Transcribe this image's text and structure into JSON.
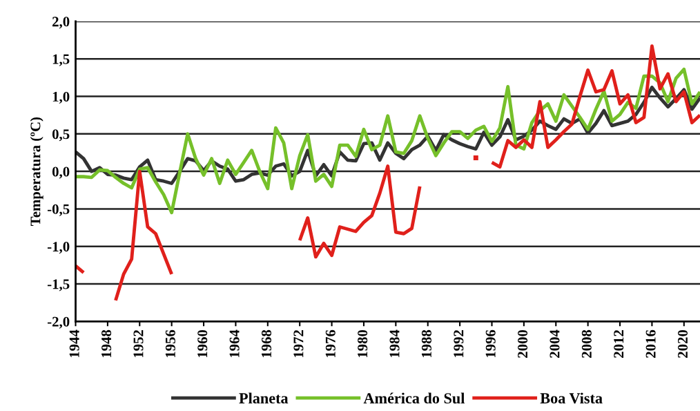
{
  "chart_data": {
    "type": "line",
    "ylabel": "Temperatura (ºC)",
    "x": [
      1944,
      1945,
      1946,
      1947,
      1948,
      1949,
      1950,
      1951,
      1952,
      1953,
      1954,
      1955,
      1956,
      1957,
      1958,
      1959,
      1960,
      1961,
      1962,
      1963,
      1964,
      1965,
      1966,
      1967,
      1968,
      1969,
      1970,
      1971,
      1972,
      1973,
      1974,
      1975,
      1976,
      1977,
      1978,
      1979,
      1980,
      1981,
      1982,
      1983,
      1984,
      1985,
      1986,
      1987,
      1988,
      1989,
      1990,
      1991,
      1992,
      1993,
      1994,
      1995,
      1996,
      1997,
      1998,
      1999,
      2000,
      2001,
      2002,
      2003,
      2004,
      2005,
      2006,
      2007,
      2008,
      2009,
      2010,
      2011,
      2012,
      2013,
      2014,
      2015,
      2016,
      2017,
      2018,
      2019,
      2020,
      2021,
      2022
    ],
    "series": [
      {
        "name": "Planeta",
        "color": "#333333",
        "values": [
          0.26,
          0.17,
          0.0,
          0.05,
          -0.04,
          -0.05,
          -0.09,
          -0.11,
          0.06,
          0.15,
          -0.11,
          -0.13,
          -0.16,
          0.0,
          0.17,
          0.14,
          0.01,
          0.14,
          0.07,
          0.03,
          -0.13,
          -0.11,
          -0.04,
          -0.02,
          -0.05,
          0.07,
          0.1,
          -0.06,
          0.0,
          0.28,
          -0.06,
          0.09,
          -0.06,
          0.26,
          0.15,
          0.14,
          0.37,
          0.38,
          0.15,
          0.38,
          0.24,
          0.17,
          0.29,
          0.35,
          0.47,
          0.28,
          0.49,
          0.42,
          0.37,
          0.33,
          0.3,
          0.52,
          0.35,
          0.46,
          0.69,
          0.42,
          0.47,
          0.55,
          0.67,
          0.61,
          0.56,
          0.7,
          0.64,
          0.7,
          0.51,
          0.64,
          0.81,
          0.61,
          0.64,
          0.67,
          0.76,
          0.92,
          1.12,
          0.98,
          0.86,
          0.97,
          1.09,
          0.83,
          0.98
        ]
      },
      {
        "name": "América do Sul",
        "color": "#76c02a",
        "values": [
          -0.07,
          -0.07,
          -0.08,
          0.02,
          0.01,
          -0.08,
          -0.16,
          -0.22,
          0.03,
          0.05,
          -0.14,
          -0.31,
          -0.55,
          -0.02,
          0.5,
          0.17,
          -0.05,
          0.17,
          -0.16,
          0.15,
          -0.04,
          0.12,
          0.28,
          0.0,
          -0.23,
          0.58,
          0.38,
          -0.23,
          0.21,
          0.49,
          -0.13,
          -0.04,
          -0.2,
          0.35,
          0.35,
          0.2,
          0.56,
          0.29,
          0.35,
          0.74,
          0.26,
          0.24,
          0.41,
          0.74,
          0.44,
          0.21,
          0.38,
          0.53,
          0.53,
          0.44,
          0.55,
          0.6,
          0.4,
          0.58,
          1.13,
          0.35,
          0.3,
          0.65,
          0.81,
          0.9,
          0.67,
          1.02,
          0.87,
          0.72,
          0.56,
          0.83,
          1.07,
          0.67,
          0.76,
          0.92,
          0.84,
          1.27,
          1.27,
          1.18,
          0.93,
          1.24,
          1.36,
          0.9,
          1.06
        ]
      },
      {
        "name": "Boa Vista",
        "color": "#e0201b",
        "values": [
          -1.26,
          -1.35,
          null,
          null,
          null,
          -1.72,
          -1.37,
          -1.17,
          0.0,
          -0.74,
          -0.83,
          -1.1,
          -1.37,
          null,
          null,
          null,
          null,
          null,
          null,
          null,
          null,
          null,
          null,
          null,
          null,
          null,
          null,
          null,
          -0.92,
          -0.62,
          -1.14,
          -0.96,
          -1.12,
          -0.74,
          -0.77,
          -0.8,
          -0.68,
          -0.59,
          -0.29,
          0.07,
          -0.81,
          -0.83,
          -0.76,
          -0.2,
          null,
          null,
          null,
          null,
          null,
          null,
          0.18,
          null,
          0.12,
          0.06,
          0.41,
          0.32,
          0.42,
          0.32,
          0.93,
          0.32,
          0.42,
          0.53,
          0.63,
          1.0,
          1.35,
          1.06,
          1.09,
          1.34,
          0.9,
          1.02,
          0.65,
          0.72,
          1.67,
          1.1,
          1.3,
          0.93,
          1.06,
          0.65,
          0.75
        ]
      }
    ],
    "xlim": [
      1944,
      2022
    ],
    "xticks": [
      1944,
      1948,
      1952,
      1956,
      1960,
      1964,
      1968,
      1972,
      1976,
      1980,
      1984,
      1988,
      1992,
      1996,
      2000,
      2004,
      2008,
      2012,
      2016,
      2020
    ],
    "ylim": [
      -2.0,
      2.0
    ],
    "yticks": [
      {
        "value": -2.0,
        "label": "-2,0"
      },
      {
        "value": -1.5,
        "label": "-1,5"
      },
      {
        "value": -1.0,
        "label": "-1,0"
      },
      {
        "value": -0.5,
        "label": "-0,5"
      },
      {
        "value": 0.0,
        "label": "0,0"
      },
      {
        "value": 0.5,
        "label": "0,5"
      },
      {
        "value": 1.0,
        "label": "1,0"
      },
      {
        "value": 1.5,
        "label": "1,5"
      },
      {
        "value": 2.0,
        "label": "2,0"
      }
    ],
    "grid": "y",
    "legend": "bottom"
  }
}
